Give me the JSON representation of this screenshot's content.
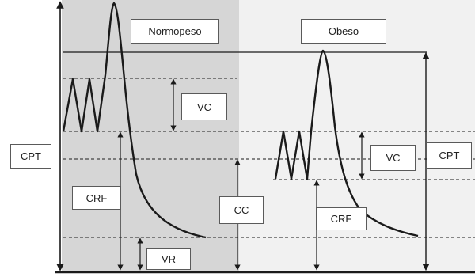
{
  "panels": {
    "left": {
      "title": "Normopeso",
      "shade": "#d6d6d6"
    },
    "right": {
      "title": "Obeso",
      "shade": "#f1f1f1"
    }
  },
  "labels": {
    "cpt_left": "CPT",
    "cpt_right": "CPT",
    "vc_left": "VC",
    "vc_right": "VC",
    "crf_left": "CRF",
    "crf_right": "CRF",
    "cc": "CC",
    "vr": "VR"
  },
  "colors": {
    "line": "#1a1a1a",
    "dashed": "#444444",
    "box_border": "#5a5a5a"
  }
}
